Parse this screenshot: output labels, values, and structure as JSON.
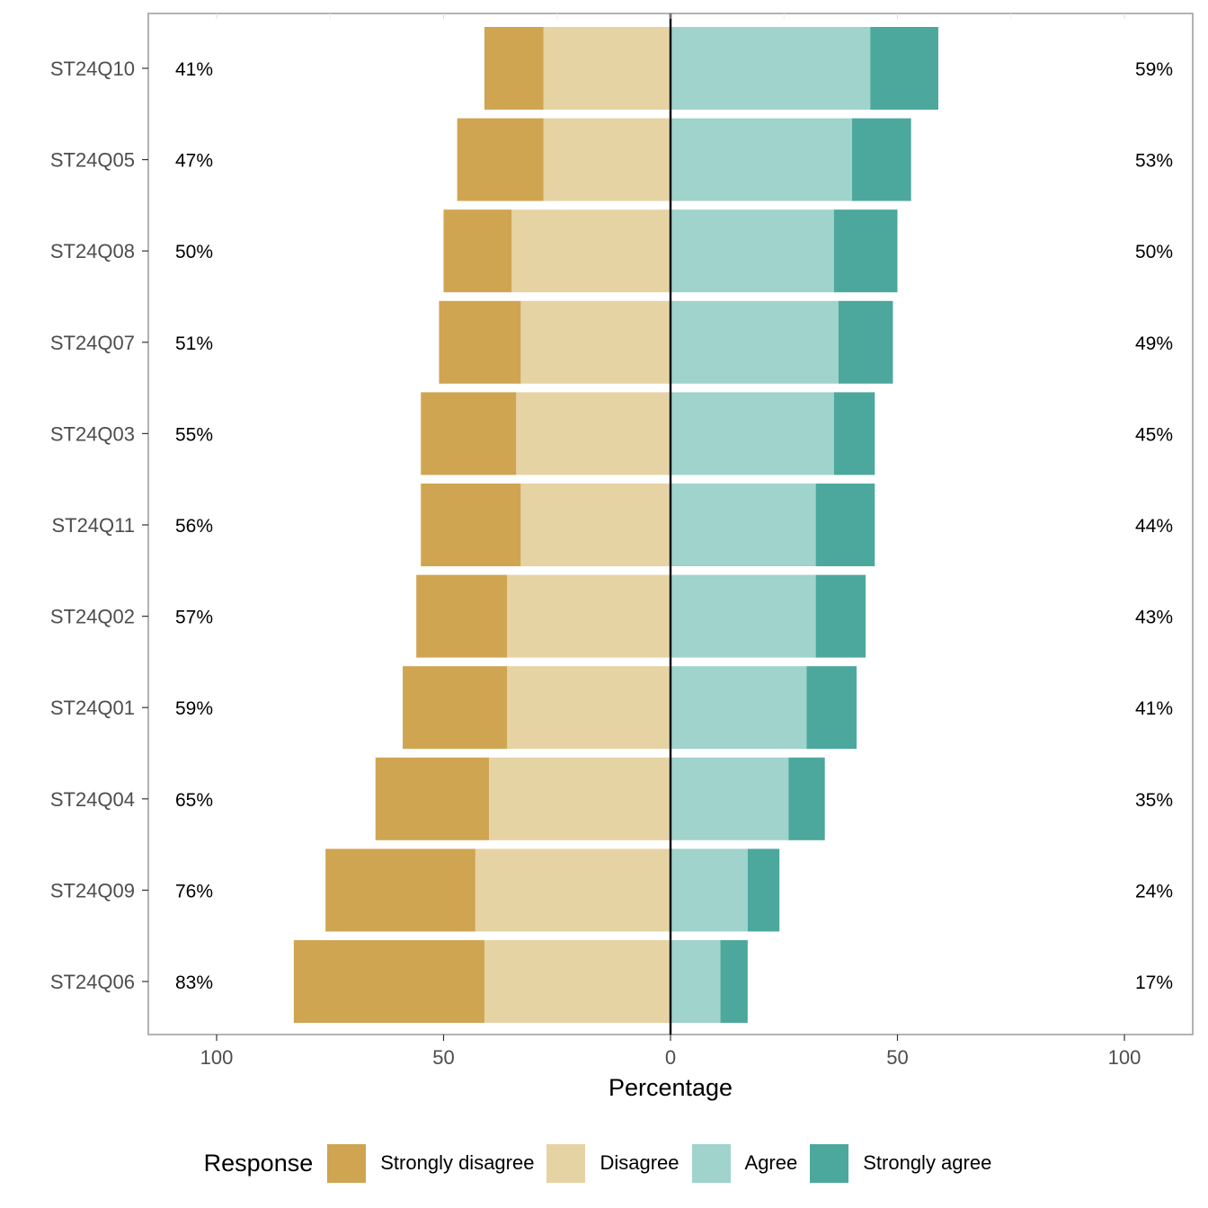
{
  "chart_data": {
    "type": "bar",
    "orientation": "horizontal-diverging",
    "xlabel": "Percentage",
    "ylabel": "",
    "xlim": [
      -115,
      115
    ],
    "x_ticks": [
      -100,
      -50,
      0,
      50,
      100
    ],
    "x_tick_labels": [
      "100",
      "50",
      "0",
      "50",
      "100"
    ],
    "grid": false,
    "legend_placement": "bottom",
    "legend_title": "Response",
    "categories": [
      "ST24Q10",
      "ST24Q05",
      "ST24Q08",
      "ST24Q07",
      "ST24Q03",
      "ST24Q11",
      "ST24Q02",
      "ST24Q01",
      "ST24Q04",
      "ST24Q09",
      "ST24Q06"
    ],
    "series": [
      {
        "name": "Strongly disagree",
        "color": "#CFA552",
        "values": [
          13,
          19,
          15,
          18,
          21,
          22,
          20,
          23,
          25,
          33,
          42
        ]
      },
      {
        "name": "Disagree",
        "color": "#E6D3A4",
        "values": [
          28,
          28,
          35,
          33,
          34,
          33,
          36,
          36,
          40,
          43,
          41
        ]
      },
      {
        "name": "Agree",
        "color": "#9FD3CC",
        "values": [
          44,
          40,
          36,
          37,
          36,
          32,
          32,
          30,
          26,
          17,
          11
        ]
      },
      {
        "name": "Strongly agree",
        "color": "#4CA89C",
        "values": [
          15,
          13,
          14,
          12,
          9,
          13,
          11,
          11,
          8,
          7,
          6
        ]
      }
    ],
    "left_labels": [
      "41%",
      "47%",
      "50%",
      "51%",
      "55%",
      "56%",
      "57%",
      "59%",
      "65%",
      "76%",
      "83%"
    ],
    "right_labels": [
      "59%",
      "53%",
      "50%",
      "49%",
      "45%",
      "44%",
      "43%",
      "41%",
      "35%",
      "24%",
      "17%"
    ]
  }
}
